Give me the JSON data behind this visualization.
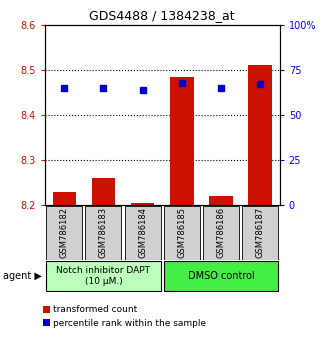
{
  "title": "GDS4488 / 1384238_at",
  "samples": [
    "GSM786182",
    "GSM786183",
    "GSM786184",
    "GSM786185",
    "GSM786186",
    "GSM786187"
  ],
  "red_values": [
    8.23,
    8.26,
    8.205,
    8.485,
    8.22,
    8.51
  ],
  "blue_percentiles": [
    65,
    65,
    64,
    68,
    65,
    67
  ],
  "ylim_left": [
    8.2,
    8.6
  ],
  "ylim_right": [
    0,
    100
  ],
  "yticks_left": [
    8.2,
    8.3,
    8.4,
    8.5,
    8.6
  ],
  "yticks_right": [
    0,
    25,
    50,
    75,
    100
  ],
  "ytick_labels_right": [
    "0",
    "25",
    "50",
    "75",
    "100%"
  ],
  "bar_base": 8.2,
  "bar_width": 0.6,
  "red_color": "#cc1100",
  "blue_color": "#0000cc",
  "group1_label": "Notch inhibitor DAPT\n(10 μM.)",
  "group2_label": "DMSO control",
  "group1_color": "#bbffbb",
  "group2_color": "#44ee44",
  "legend1": "transformed count",
  "legend2": "percentile rank within the sample",
  "sample_box_color": "#d0d0d0",
  "title_fontsize": 9
}
